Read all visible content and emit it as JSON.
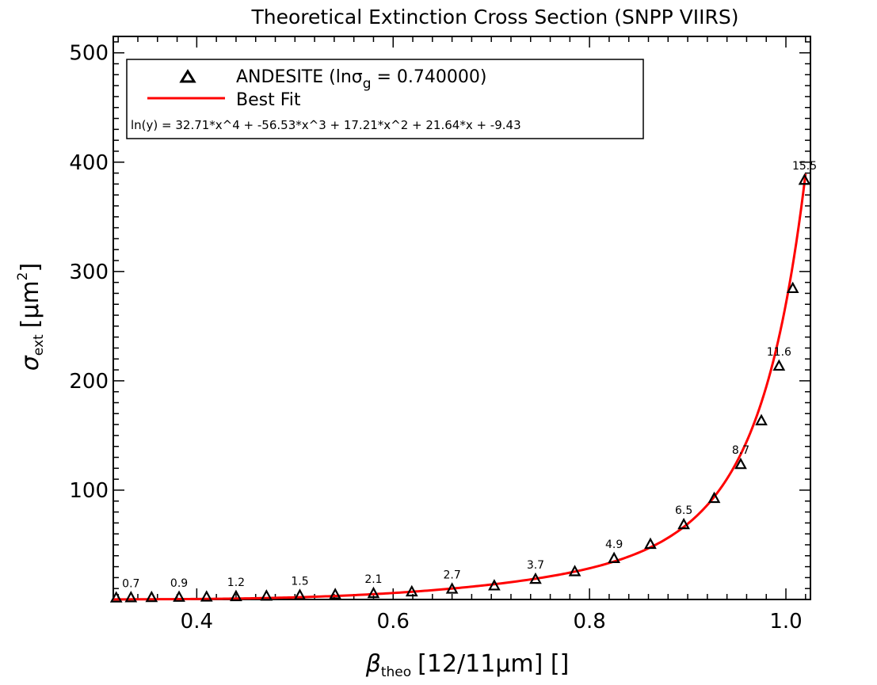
{
  "chart_data": {
    "type": "scatter",
    "title": "Theoretical Extinction Cross Section (SNPP VIIRS)",
    "xlabel": {
      "symbol": "β",
      "subscript": "theo",
      "text": "[12/11μm] []"
    },
    "ylabel": {
      "symbol": "σ",
      "subscript": "ext",
      "text": "[μm",
      "superscript": "2",
      "close": "]"
    },
    "xlim": [
      0.315,
      1.025
    ],
    "ylim": [
      0,
      515
    ],
    "xticks": [
      {
        "v": 0.4,
        "label": "0.4"
      },
      {
        "v": 0.6,
        "label": "0.6"
      },
      {
        "v": 0.8,
        "label": "0.8"
      },
      {
        "v": 1.0,
        "label": "1.0"
      }
    ],
    "yticks": [
      {
        "v": 100,
        "label": "100"
      },
      {
        "v": 200,
        "label": "200"
      },
      {
        "v": 300,
        "label": "300"
      },
      {
        "v": 400,
        "label": "400"
      },
      {
        "v": 500,
        "label": "500"
      }
    ],
    "legend": {
      "position": "top-left",
      "entries": [
        {
          "marker": "triangle",
          "text": "ANDESITE (lnσ",
          "sub": "g",
          "text_end": " = 0.740000)"
        },
        {
          "marker": "line",
          "text": "Best Fit"
        }
      ],
      "equation": "ln(y) = 32.71*x^4 + -56.53*x^3 + 17.21*x^2 + 21.64*x + -9.43"
    },
    "series": [
      {
        "name": "ANDESITE",
        "marker": "triangle",
        "color": "#000000",
        "points": [
          {
            "x": 0.318,
            "y": 1.0
          },
          {
            "x": 0.333,
            "y": 1.2,
            "label": "0.7"
          },
          {
            "x": 0.354,
            "y": 1.3
          },
          {
            "x": 0.382,
            "y": 1.6,
            "label": "0.9"
          },
          {
            "x": 0.41,
            "y": 1.8
          },
          {
            "x": 0.44,
            "y": 2.2,
            "label": "1.2"
          },
          {
            "x": 0.471,
            "y": 2.6
          },
          {
            "x": 0.505,
            "y": 3.2,
            "label": "1.5"
          },
          {
            "x": 0.541,
            "y": 4.0
          },
          {
            "x": 0.58,
            "y": 5.0,
            "label": "2.1"
          },
          {
            "x": 0.619,
            "y": 6.5
          },
          {
            "x": 0.66,
            "y": 9.0,
            "label": "2.7"
          },
          {
            "x": 0.703,
            "y": 12.0
          },
          {
            "x": 0.745,
            "y": 18.0,
            "label": "3.7"
          },
          {
            "x": 0.785,
            "y": 25.0
          },
          {
            "x": 0.825,
            "y": 37.0,
            "label": "4.9"
          },
          {
            "x": 0.862,
            "y": 50.0
          },
          {
            "x": 0.896,
            "y": 68.0,
            "label": "6.5"
          },
          {
            "x": 0.927,
            "y": 92.0
          },
          {
            "x": 0.954,
            "y": 123.0,
            "label": "8.7"
          },
          {
            "x": 0.975,
            "y": 163.0
          },
          {
            "x": 0.993,
            "y": 213.0,
            "label": "11.6"
          },
          {
            "x": 1.007,
            "y": 284.0
          },
          {
            "x": 1.019,
            "y": 383.0,
            "label": "15.5"
          }
        ]
      },
      {
        "name": "Best Fit",
        "type": "line",
        "color": "#ff0000",
        "coefficients": [
          32.71,
          -56.53,
          17.21,
          21.64,
          -9.43
        ]
      }
    ],
    "grid": false
  }
}
